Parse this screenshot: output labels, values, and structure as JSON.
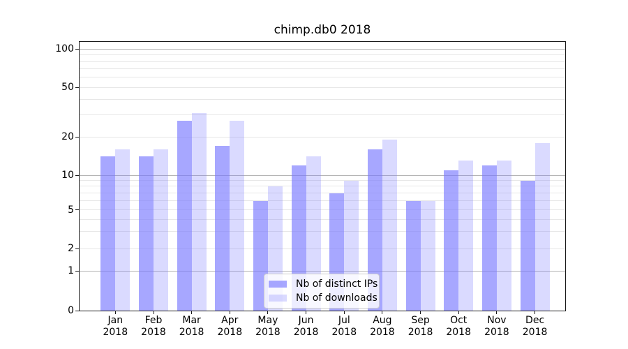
{
  "page": {
    "background": "#ffffff"
  },
  "chart_data": {
    "type": "bar",
    "title": "chimp.db0 2018",
    "categories": [
      "Jan",
      "Feb",
      "Mar",
      "Apr",
      "May",
      "Jun",
      "Jul",
      "Aug",
      "Sep",
      "Oct",
      "Nov",
      "Dec"
    ],
    "category_year": "2018",
    "series": [
      {
        "name": "Nb of distinct IPs",
        "color": "rgba(122,122,255,0.66)",
        "values": [
          14,
          14,
          27,
          17,
          6,
          12,
          7,
          16,
          6,
          11,
          12,
          9
        ]
      },
      {
        "name": "Nb of downloads",
        "color": "rgba(122,122,255,0.28)",
        "values": [
          16,
          16,
          31,
          27,
          8,
          14,
          9,
          19,
          6,
          13,
          13,
          18
        ]
      }
    ],
    "xlabel": "",
    "ylabel": "",
    "yscale": "symlog",
    "y_ticks": [
      0,
      1,
      2,
      5,
      10,
      20,
      50,
      100
    ],
    "ylim": [
      0,
      110
    ],
    "grid": true,
    "legend_position": "lower center",
    "colors": {
      "major_grid": "#b4b4b4",
      "minor_grid": "#e7e7e7",
      "spine": "#1a1a1a",
      "bar_dark_on_white": "#a9a9fa",
      "bar_light_on_white": "#dbdbfa"
    }
  }
}
